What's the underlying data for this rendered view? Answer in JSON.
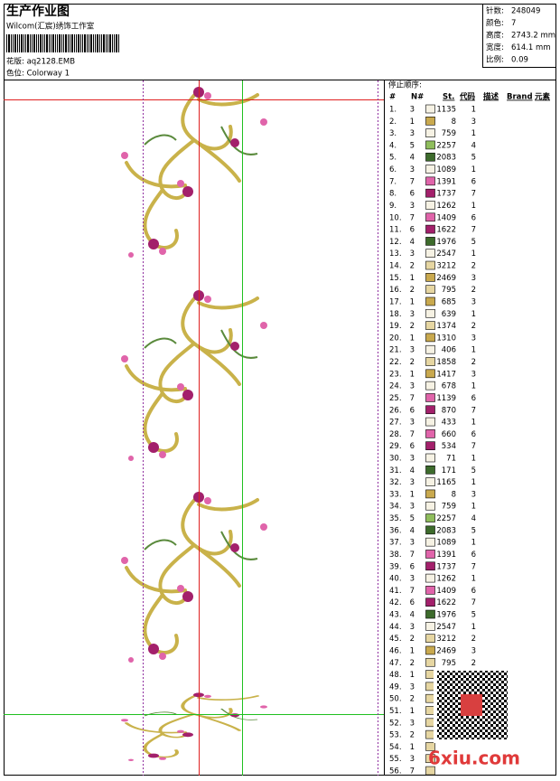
{
  "header": {
    "title": "生产作业图",
    "studio": "Wilcom(汇宸)绣饰工作室",
    "design": "花版: aq2128.EMB",
    "colorway": "色位: Colorway 1"
  },
  "stats": [
    {
      "label": "针数:",
      "value": "248049"
    },
    {
      "label": "颜色:",
      "value": "7"
    },
    {
      "label": "高度:",
      "value": "2743.2 mm"
    },
    {
      "label": "宽度:",
      "value": "614.1 mm"
    },
    {
      "label": "比例:",
      "value": "0.09"
    }
  ],
  "table": {
    "caption": "停止顺序:",
    "columns": [
      "#",
      "N#",
      "St.",
      "代码",
      "描述",
      "Brand",
      "元素"
    ],
    "rows": [
      [
        "1.",
        "3",
        "1135",
        "1"
      ],
      [
        "2.",
        "1",
        "8",
        "3"
      ],
      [
        "3.",
        "3",
        "759",
        "1"
      ],
      [
        "4.",
        "5",
        "2257",
        "4"
      ],
      [
        "5.",
        "4",
        "2083",
        "5"
      ],
      [
        "6.",
        "3",
        "1089",
        "1"
      ],
      [
        "7.",
        "7",
        "1391",
        "6"
      ],
      [
        "8.",
        "6",
        "1737",
        "7"
      ],
      [
        "9.",
        "3",
        "1262",
        "1"
      ],
      [
        "10.",
        "7",
        "1409",
        "6"
      ],
      [
        "11.",
        "6",
        "1622",
        "7"
      ],
      [
        "12.",
        "4",
        "1976",
        "5"
      ],
      [
        "13.",
        "3",
        "2547",
        "1"
      ],
      [
        "14.",
        "2",
        "3212",
        "2"
      ],
      [
        "15.",
        "1",
        "2469",
        "3"
      ],
      [
        "16.",
        "2",
        "795",
        "2"
      ],
      [
        "17.",
        "1",
        "685",
        "3"
      ],
      [
        "18.",
        "3",
        "639",
        "1"
      ],
      [
        "19.",
        "2",
        "1374",
        "2"
      ],
      [
        "20.",
        "1",
        "1310",
        "3"
      ],
      [
        "21.",
        "3",
        "406",
        "1"
      ],
      [
        "22.",
        "2",
        "1858",
        "2"
      ],
      [
        "23.",
        "1",
        "1417",
        "3"
      ],
      [
        "24.",
        "3",
        "678",
        "1"
      ],
      [
        "25.",
        "7",
        "1139",
        "6"
      ],
      [
        "26.",
        "6",
        "870",
        "7"
      ],
      [
        "27.",
        "3",
        "433",
        "1"
      ],
      [
        "28.",
        "7",
        "660",
        "6"
      ],
      [
        "29.",
        "6",
        "534",
        "7"
      ],
      [
        "30.",
        "3",
        "71",
        "1"
      ],
      [
        "31.",
        "4",
        "171",
        "5"
      ],
      [
        "32.",
        "3",
        "1165",
        "1"
      ],
      [
        "33.",
        "1",
        "8",
        "3"
      ],
      [
        "34.",
        "3",
        "759",
        "1"
      ],
      [
        "35.",
        "5",
        "2257",
        "4"
      ],
      [
        "36.",
        "4",
        "2083",
        "5"
      ],
      [
        "37.",
        "3",
        "1089",
        "1"
      ],
      [
        "38.",
        "7",
        "1391",
        "6"
      ],
      [
        "39.",
        "6",
        "1737",
        "7"
      ],
      [
        "40.",
        "3",
        "1262",
        "1"
      ],
      [
        "41.",
        "7",
        "1409",
        "6"
      ],
      [
        "42.",
        "6",
        "1622",
        "7"
      ],
      [
        "43.",
        "4",
        "1976",
        "5"
      ],
      [
        "44.",
        "3",
        "2547",
        "1"
      ],
      [
        "45.",
        "2",
        "3212",
        "2"
      ],
      [
        "46.",
        "1",
        "2469",
        "3"
      ],
      [
        "47.",
        "2",
        "795",
        "2"
      ],
      [
        "48.",
        "1"
      ],
      [
        "49.",
        "3"
      ],
      [
        "50.",
        "2"
      ],
      [
        "51.",
        "1"
      ],
      [
        "52.",
        "3"
      ],
      [
        "53.",
        "2"
      ],
      [
        "54.",
        "1"
      ],
      [
        "55.",
        "3"
      ],
      [
        "56.",
        "7"
      ]
    ],
    "swatch_colors": {
      "1": "#f6f2e4",
      "2": "#e6d6a2",
      "3": "#c9a94e",
      "4": "#8fbd5c",
      "5": "#3d6b2c",
      "6": "#e064aa",
      "7": "#a3206b"
    }
  },
  "watermark": "6xiu.com"
}
